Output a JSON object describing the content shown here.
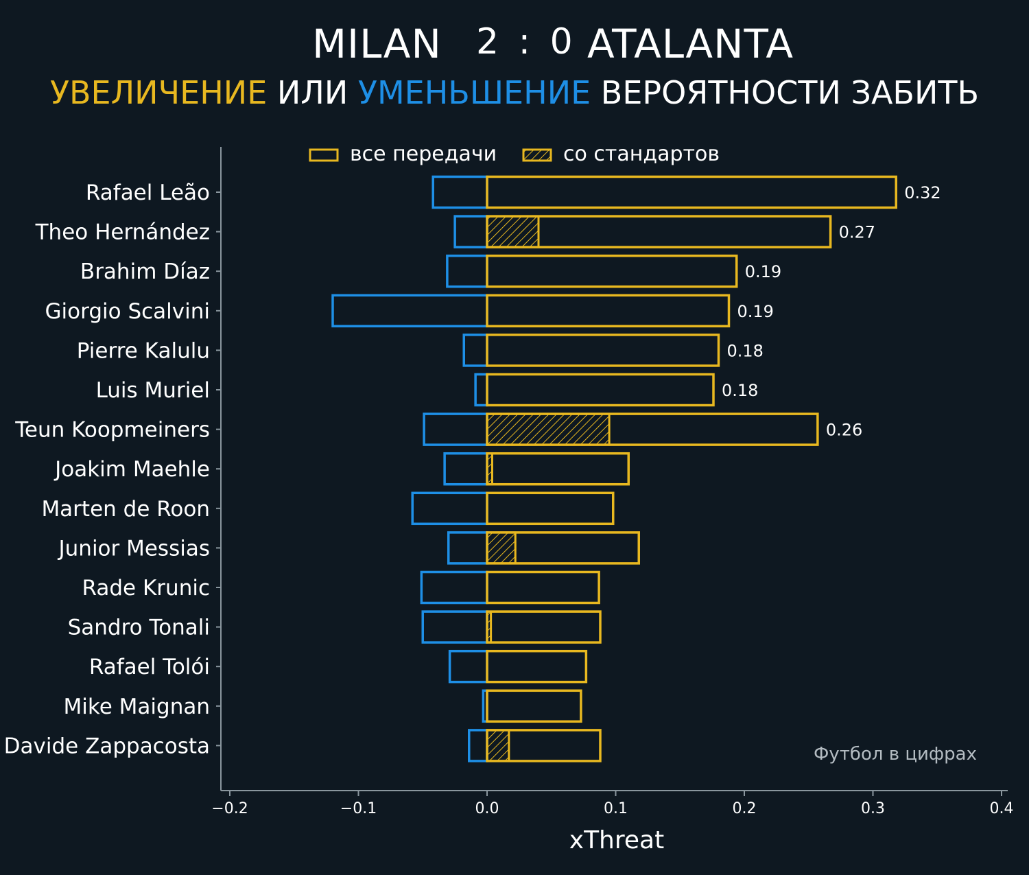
{
  "header": {
    "home_team": "MILAN",
    "score": "2 : 0",
    "away_team": "ATALANTA"
  },
  "subtitle": {
    "part1": "УВЕЛИЧЕНИЕ",
    "part2": " ИЛИ ",
    "part3": "УМЕНЬШЕНИЕ",
    "part4": " ВЕРОЯТНОСТИ ЗАБИТЬ"
  },
  "colors": {
    "background": "#0e1821",
    "increase": "#e8b820",
    "decrease": "#1e8fe6",
    "text": "#ffffff",
    "axis": "#8a969e",
    "watermark": "#b4bcc2"
  },
  "legend": {
    "all_passes": "все передачи",
    "set_pieces": "со стандартов",
    "placement": "top-center"
  },
  "watermark": "Футбол в цифрах",
  "chart_data": {
    "type": "bar",
    "orientation": "horizontal",
    "xlabel": "xThreat",
    "xlim": [
      -0.2,
      0.4
    ],
    "xticks": [
      -0.2,
      -0.1,
      0.0,
      0.1,
      0.2,
      0.3,
      0.4
    ],
    "xtick_labels": [
      "−0.2",
      "−0.1",
      "0.0",
      "0.1",
      "0.2",
      "0.3",
      "0.4"
    ],
    "categories": [
      "Rafael Leão",
      "Theo Hernández",
      "Brahim Díaz",
      "Giorgio Scalvini",
      "Pierre Kalulu",
      "Luis Muriel",
      "Teun Koopmeiners",
      "Joakim Maehle",
      "Marten de Roon",
      "Junior Messias",
      "Rade Krunic",
      "Sandro Tonali",
      "Rafael Tolói",
      "Mike Maignan",
      "Davide Zappacosta"
    ],
    "series": [
      {
        "name": "все передачи",
        "values": [
          0.318,
          0.267,
          0.194,
          0.188,
          0.18,
          0.176,
          0.257,
          0.11,
          0.098,
          0.118,
          0.087,
          0.088,
          0.077,
          0.073,
          0.088
        ]
      },
      {
        "name": "со стандартов",
        "values": [
          0.0,
          0.04,
          0.0,
          0.0,
          0.0,
          0.0,
          0.095,
          0.004,
          0.0,
          0.022,
          0.0,
          0.003,
          0.0,
          0.0,
          0.017
        ]
      },
      {
        "values": [
          -0.042,
          -0.025,
          -0.031,
          -0.12,
          -0.018,
          -0.009,
          -0.049,
          -0.033,
          -0.058,
          -0.03,
          -0.051,
          -0.05,
          -0.029,
          -0.003,
          -0.014
        ]
      }
    ],
    "data_labels": [
      "0.32",
      "0.27",
      "0.19",
      "0.19",
      "0.18",
      "0.18",
      "0.26",
      "",
      "",
      "",
      "",
      "",
      "",
      "",
      ""
    ]
  }
}
